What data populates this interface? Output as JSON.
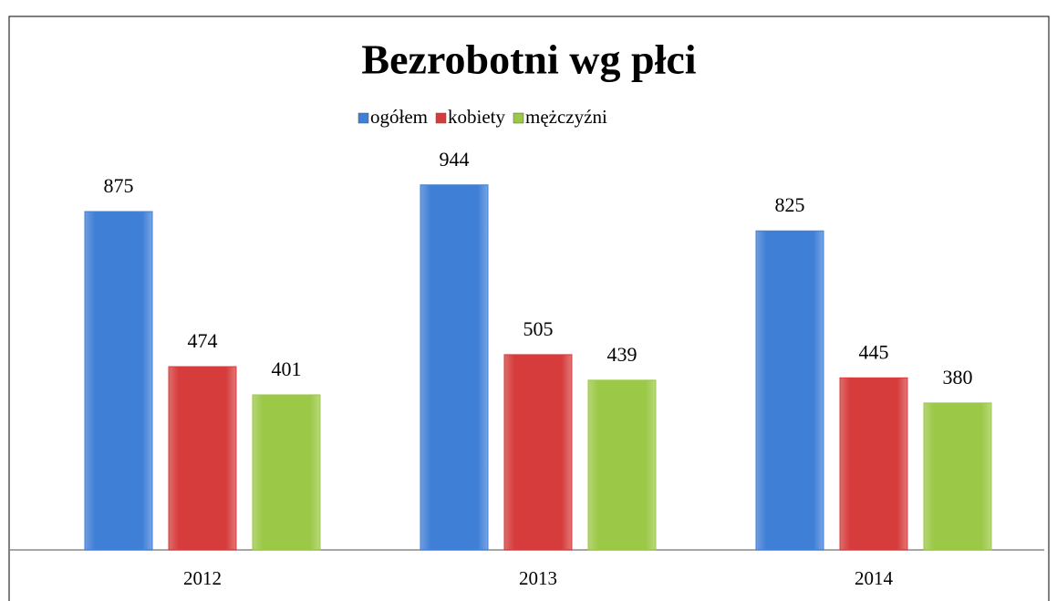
{
  "chart_data": {
    "type": "bar",
    "title": "Bezrobotni wg płci",
    "categories": [
      "2012",
      "2013",
      "2014"
    ],
    "series": [
      {
        "name": "ogółem",
        "color": "#3f7fd6",
        "values": [
          875,
          944,
          825
        ]
      },
      {
        "name": "kobiety",
        "color": "#d63c3c",
        "values": [
          474,
          505,
          445
        ]
      },
      {
        "name": "mężczyźni",
        "color": "#9bc846",
        "values": [
          401,
          439,
          380
        ]
      }
    ],
    "ylim": [
      0,
      1000
    ],
    "legend": "top",
    "data_labels": true
  }
}
